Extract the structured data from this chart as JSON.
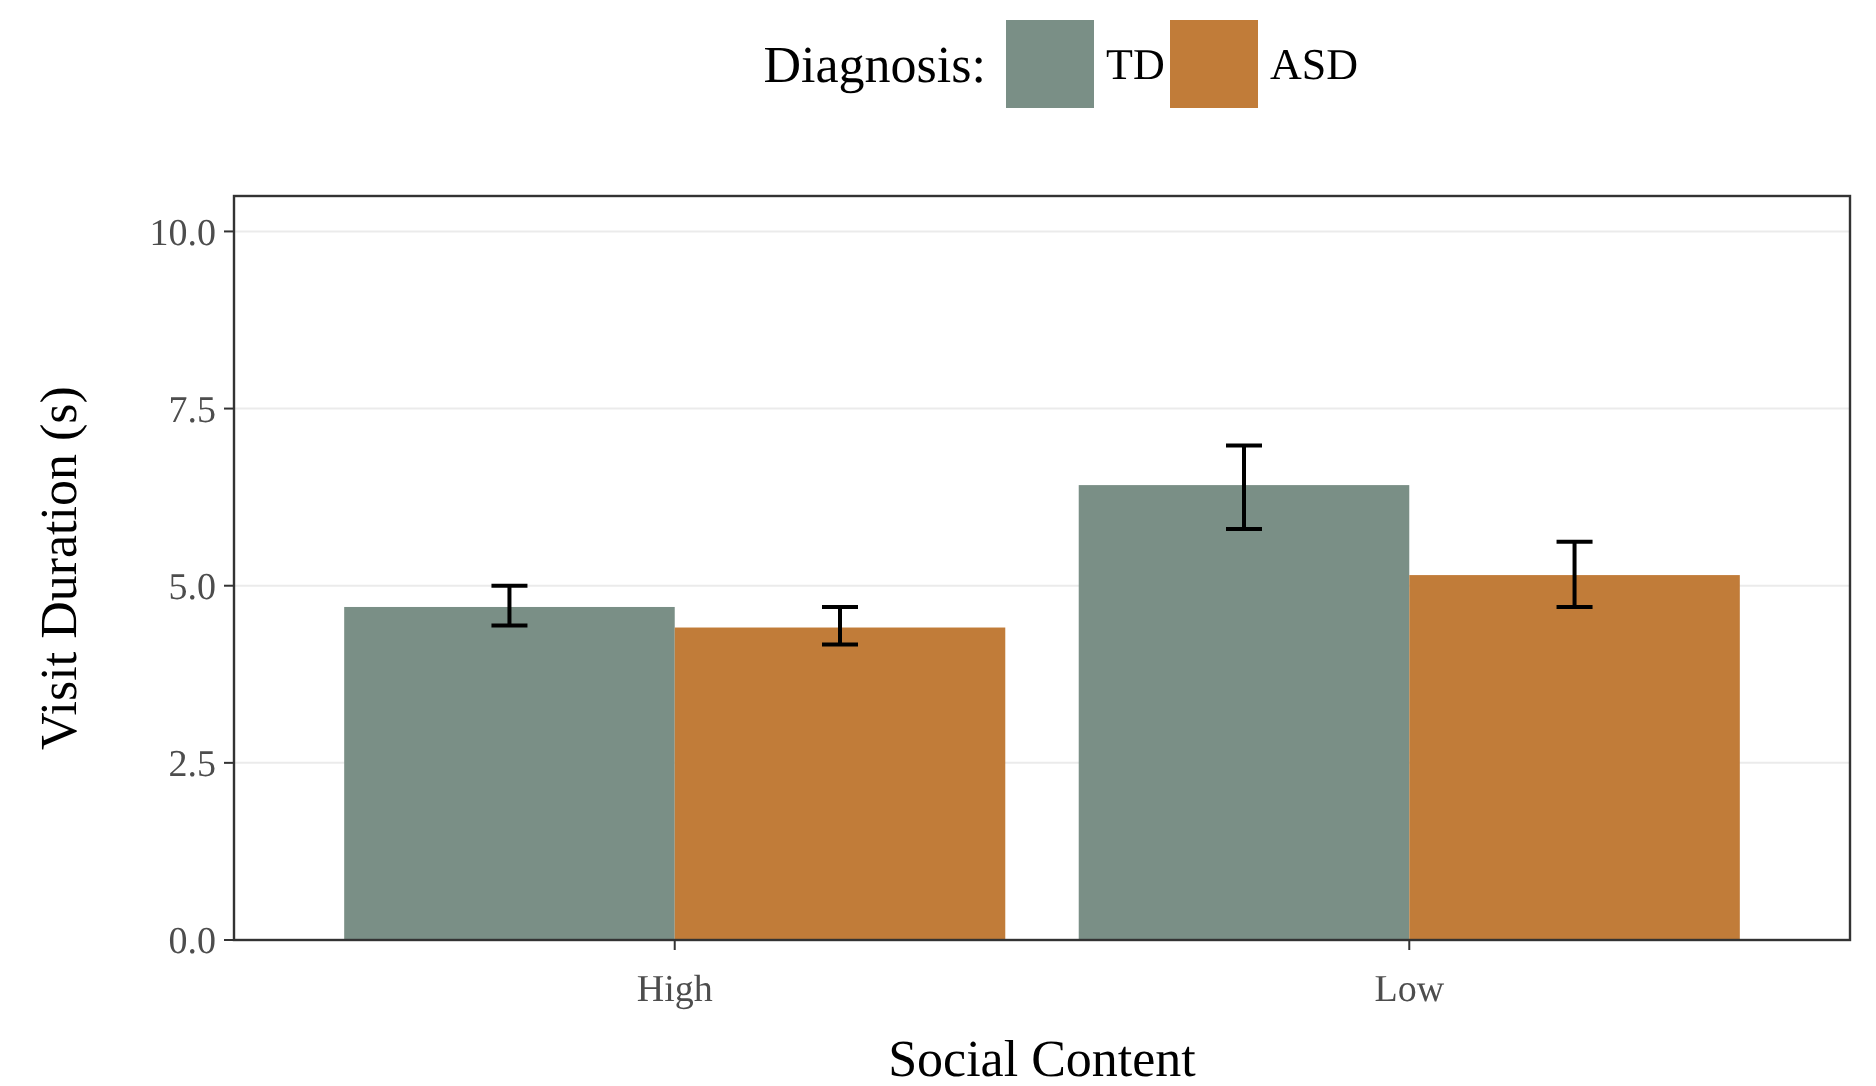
{
  "chart_data": {
    "type": "bar",
    "xlabel": "Social Content",
    "ylabel": "Visit Duration (s)",
    "legend_title": "Diagnosis:",
    "categories": [
      "High",
      "Low"
    ],
    "series": [
      {
        "name": "TD",
        "color": "#7a8f86",
        "values": [
          4.7,
          6.42
        ],
        "errors": [
          [
            4.44,
            5.0
          ],
          [
            5.8,
            6.98
          ]
        ]
      },
      {
        "name": "ASD",
        "color": "#c17c39",
        "values": [
          4.41,
          5.15
        ],
        "errors": [
          [
            4.17,
            4.7
          ],
          [
            4.7,
            5.62
          ]
        ]
      }
    ],
    "ylim": [
      0,
      10.5
    ],
    "yticks": [
      {
        "value": 0,
        "label": "0.0"
      },
      {
        "value": 2.5,
        "label": "2.5"
      },
      {
        "value": 5,
        "label": "5.0"
      },
      {
        "value": 7.5,
        "label": "7.5"
      },
      {
        "value": 10,
        "label": "10.0"
      }
    ],
    "grid": "y",
    "legend": "top"
  }
}
